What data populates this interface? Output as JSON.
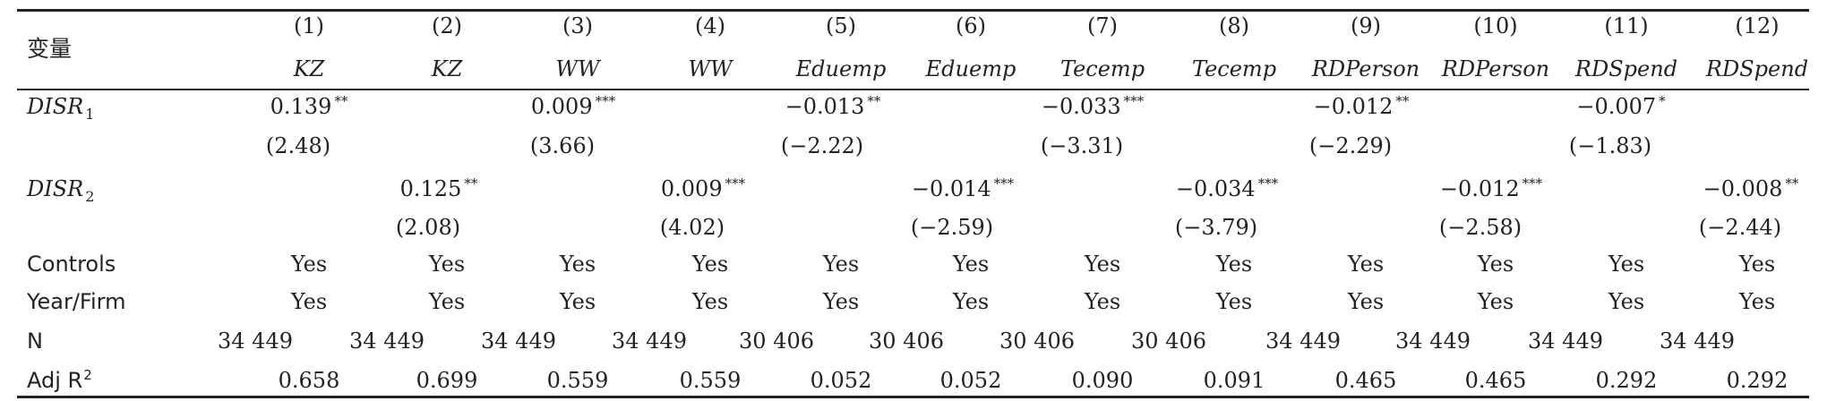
{
  "table": {
    "variable_header": "变量",
    "column_numbers": [
      "(1)",
      "(2)",
      "(3)",
      "(4)",
      "(5)",
      "(6)",
      "(7)",
      "(8)",
      "(9)",
      "(10)",
      "(11)",
      "(12)"
    ],
    "column_variables": [
      "KZ",
      "KZ",
      "WW",
      "WW",
      "Eduemp",
      "Eduemp",
      "Tecemp",
      "Tecemp",
      "RDPerson",
      "RDPerson",
      "RDSpend",
      "RDSpend"
    ],
    "disr1": {
      "label": "DISR",
      "subscript": "1",
      "coefs": [
        {
          "col": 1,
          "value": "0.139",
          "stars": "**",
          "t": "(2.48)"
        },
        {
          "col": 3,
          "value": "0.009",
          "stars": "***",
          "t": "(3.66)"
        },
        {
          "col": 5,
          "value": "−0.013",
          "stars": "**",
          "t": "(−2.22)"
        },
        {
          "col": 7,
          "value": "−0.033",
          "stars": "***",
          "t": "(−3.31)"
        },
        {
          "col": 9,
          "value": "−0.012",
          "stars": "**",
          "t": "(−2.29)"
        },
        {
          "col": 11,
          "value": "−0.007",
          "stars": "*",
          "t": "(−1.83)"
        }
      ]
    },
    "disr2": {
      "label": "DISR",
      "subscript": "2",
      "coefs": [
        {
          "col": 2,
          "value": "0.125",
          "stars": "**",
          "t": "(2.08)"
        },
        {
          "col": 4,
          "value": "0.009",
          "stars": "***",
          "t": "(4.02)"
        },
        {
          "col": 6,
          "value": "−0.014",
          "stars": "***",
          "t": "(−2.59)"
        },
        {
          "col": 8,
          "value": "−0.034",
          "stars": "***",
          "t": "(−3.79)"
        },
        {
          "col": 10,
          "value": "−0.012",
          "stars": "***",
          "t": "(−2.58)"
        },
        {
          "col": 12,
          "value": "−0.008",
          "stars": "**",
          "t": "(−2.44)"
        }
      ]
    },
    "controls": {
      "label": "Controls",
      "values": [
        "Yes",
        "Yes",
        "Yes",
        "Yes",
        "Yes",
        "Yes",
        "Yes",
        "Yes",
        "Yes",
        "Yes",
        "Yes",
        "Yes"
      ]
    },
    "year_firm": {
      "label": "Year/Firm",
      "values": [
        "Yes",
        "Yes",
        "Yes",
        "Yes",
        "Yes",
        "Yes",
        "Yes",
        "Yes",
        "Yes",
        "Yes",
        "Yes",
        "Yes"
      ]
    },
    "n": {
      "label": "N",
      "values": [
        "34 449",
        "34 449",
        "34 449",
        "34 449",
        "30 406",
        "30 406",
        "30 406",
        "30 406",
        "34 449",
        "34 449",
        "34 449",
        "34 449"
      ]
    },
    "adj_r2": {
      "label": "Adj R",
      "superscript": "2",
      "values": [
        "0.658",
        "0.699",
        "0.559",
        "0.559",
        "0.052",
        "0.052",
        "0.090",
        "0.091",
        "0.465",
        "0.465",
        "0.292",
        "0.292"
      ]
    }
  }
}
